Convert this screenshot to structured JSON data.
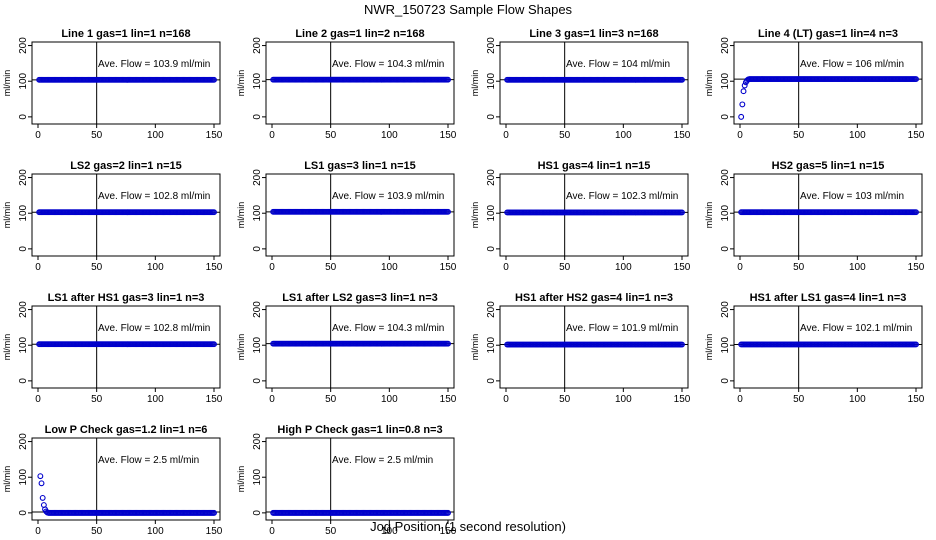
{
  "figure": {
    "title": "NWR_150723  Sample Flow Shapes",
    "xlabel": "Jog Position (1 second resolution)"
  },
  "chart_data": [
    {
      "type": "scatter",
      "title": "Line 1 gas=1 lin=1 n=168",
      "ylabel": "ml/min",
      "xlim": [
        0,
        150
      ],
      "ylim": [
        -20,
        210
      ],
      "xticks": [
        0,
        50,
        100,
        150
      ],
      "yticks": [
        0,
        100,
        200
      ],
      "annotation": "Ave. Flow = 103.9  ml/min",
      "hline": 103.9,
      "vline": 50,
      "flow": {
        "x_start": 1,
        "x_end": 150,
        "level": 103.9,
        "ramp": []
      }
    },
    {
      "type": "scatter",
      "title": "Line 2 gas=1 lin=2 n=168",
      "ylabel": "ml/min",
      "xlim": [
        0,
        150
      ],
      "ylim": [
        -20,
        210
      ],
      "xticks": [
        0,
        50,
        100,
        150
      ],
      "yticks": [
        0,
        100,
        200
      ],
      "annotation": "Ave. Flow = 104.3  ml/min",
      "hline": 104.3,
      "vline": 50,
      "flow": {
        "x_start": 1,
        "x_end": 150,
        "level": 104.3,
        "ramp": []
      }
    },
    {
      "type": "scatter",
      "title": "Line 3 gas=1 lin=3 n=168",
      "ylabel": "ml/min",
      "xlim": [
        0,
        150
      ],
      "ylim": [
        -20,
        210
      ],
      "xticks": [
        0,
        50,
        100,
        150
      ],
      "yticks": [
        0,
        100,
        200
      ],
      "annotation": "Ave. Flow = 104  ml/min",
      "hline": 104,
      "vline": 50,
      "flow": {
        "x_start": 1,
        "x_end": 150,
        "level": 104,
        "ramp": []
      }
    },
    {
      "type": "scatter",
      "title": "Line 4 (LT) gas=1 lin=4 n=3",
      "ylabel": "ml/min",
      "xlim": [
        0,
        150
      ],
      "ylim": [
        -20,
        210
      ],
      "xticks": [
        0,
        50,
        100,
        150
      ],
      "yticks": [
        0,
        100,
        200
      ],
      "annotation": "Ave. Flow = 106  ml/min",
      "hline": 106,
      "vline": 50,
      "flow": {
        "x_start": 8,
        "x_end": 150,
        "level": 106,
        "ramp": [
          [
            1,
            0
          ],
          [
            2,
            35
          ],
          [
            3,
            72
          ],
          [
            4,
            88
          ],
          [
            5,
            97
          ],
          [
            6,
            102
          ],
          [
            7,
            105
          ]
        ]
      }
    },
    {
      "type": "scatter",
      "title": "LS2 gas=2 lin=1 n=15",
      "ylabel": "ml/min",
      "xlim": [
        0,
        150
      ],
      "ylim": [
        -20,
        210
      ],
      "xticks": [
        0,
        50,
        100,
        150
      ],
      "yticks": [
        0,
        100,
        200
      ],
      "annotation": "Ave. Flow = 102.8  ml/min",
      "hline": 102.8,
      "vline": 50,
      "flow": {
        "x_start": 1,
        "x_end": 150,
        "level": 102.8,
        "ramp": []
      }
    },
    {
      "type": "scatter",
      "title": "LS1 gas=3 lin=1 n=15",
      "ylabel": "ml/min",
      "xlim": [
        0,
        150
      ],
      "ylim": [
        -20,
        210
      ],
      "xticks": [
        0,
        50,
        100,
        150
      ],
      "yticks": [
        0,
        100,
        200
      ],
      "annotation": "Ave. Flow = 103.9  ml/min",
      "hline": 103.9,
      "vline": 50,
      "flow": {
        "x_start": 1,
        "x_end": 150,
        "level": 103.9,
        "ramp": []
      }
    },
    {
      "type": "scatter",
      "title": "HS1 gas=4 lin=1 n=15",
      "ylabel": "ml/min",
      "xlim": [
        0,
        150
      ],
      "ylim": [
        -20,
        210
      ],
      "xticks": [
        0,
        50,
        100,
        150
      ],
      "yticks": [
        0,
        100,
        200
      ],
      "annotation": "Ave. Flow = 102.3  ml/min",
      "hline": 102.3,
      "vline": 50,
      "flow": {
        "x_start": 1,
        "x_end": 150,
        "level": 102.3,
        "ramp": []
      }
    },
    {
      "type": "scatter",
      "title": "HS2 gas=5 lin=1 n=15",
      "ylabel": "ml/min",
      "xlim": [
        0,
        150
      ],
      "ylim": [
        -20,
        210
      ],
      "xticks": [
        0,
        50,
        100,
        150
      ],
      "yticks": [
        0,
        100,
        200
      ],
      "annotation": "Ave. Flow = 103  ml/min",
      "hline": 103,
      "vline": 50,
      "flow": {
        "x_start": 1,
        "x_end": 150,
        "level": 103,
        "ramp": []
      }
    },
    {
      "type": "scatter",
      "title": "LS1 after HS1 gas=3 lin=1 n=3",
      "ylabel": "ml/min",
      "xlim": [
        0,
        150
      ],
      "ylim": [
        -20,
        210
      ],
      "xticks": [
        0,
        50,
        100,
        150
      ],
      "yticks": [
        0,
        100,
        200
      ],
      "annotation": "Ave. Flow = 102.8  ml/min",
      "hline": 102.8,
      "vline": 50,
      "flow": {
        "x_start": 1,
        "x_end": 150,
        "level": 102.8,
        "ramp": []
      }
    },
    {
      "type": "scatter",
      "title": "LS1 after LS2 gas=3 lin=1 n=3",
      "ylabel": "ml/min",
      "xlim": [
        0,
        150
      ],
      "ylim": [
        -20,
        210
      ],
      "xticks": [
        0,
        50,
        100,
        150
      ],
      "yticks": [
        0,
        100,
        200
      ],
      "annotation": "Ave. Flow = 104.3  ml/min",
      "hline": 104.3,
      "vline": 50,
      "flow": {
        "x_start": 1,
        "x_end": 150,
        "level": 104.3,
        "ramp": []
      }
    },
    {
      "type": "scatter",
      "title": "HS1 after HS2 gas=4 lin=1 n=3",
      "ylabel": "ml/min",
      "xlim": [
        0,
        150
      ],
      "ylim": [
        -20,
        210
      ],
      "xticks": [
        0,
        50,
        100,
        150
      ],
      "yticks": [
        0,
        100,
        200
      ],
      "annotation": "Ave. Flow = 101.9  ml/min",
      "hline": 101.9,
      "vline": 50,
      "flow": {
        "x_start": 1,
        "x_end": 150,
        "level": 101.9,
        "ramp": []
      }
    },
    {
      "type": "scatter",
      "title": "HS1 after LS1 gas=4 lin=1 n=3",
      "ylabel": "ml/min",
      "xlim": [
        0,
        150
      ],
      "ylim": [
        -20,
        210
      ],
      "xticks": [
        0,
        50,
        100,
        150
      ],
      "yticks": [
        0,
        100,
        200
      ],
      "annotation": "Ave. Flow = 102.1  ml/min",
      "hline": 102.1,
      "vline": 50,
      "flow": {
        "x_start": 1,
        "x_end": 150,
        "level": 102.1,
        "ramp": []
      }
    },
    {
      "type": "scatter",
      "title": "Low P Check gas=1.2 lin=1 n=6",
      "ylabel": "ml/min",
      "xlim": [
        0,
        150
      ],
      "ylim": [
        -20,
        210
      ],
      "xticks": [
        0,
        50,
        100,
        150
      ],
      "yticks": [
        0,
        100,
        200
      ],
      "annotation": "Ave. Flow =  2.5  ml/min",
      "hline": 2.5,
      "vline": 50,
      "flow": {
        "x_start": 9,
        "x_end": 150,
        "level": 0,
        "ramp": [
          [
            2,
            103
          ],
          [
            3,
            83
          ],
          [
            4,
            42
          ],
          [
            5,
            22
          ],
          [
            6,
            10
          ],
          [
            7,
            4
          ],
          [
            8,
            1
          ]
        ]
      }
    },
    {
      "type": "scatter",
      "title": "High P Check gas=1 lin=0.8 n=3",
      "ylabel": "ml/min",
      "xlim": [
        0,
        150
      ],
      "ylim": [
        -20,
        210
      ],
      "xticks": [
        0,
        50,
        100,
        150
      ],
      "yticks": [
        0,
        100,
        200
      ],
      "annotation": "Ave. Flow =  2.5  ml/min",
      "hline": 2.5,
      "vline": 50,
      "flow": {
        "x_start": 1,
        "x_end": 150,
        "level": 0,
        "ramp": []
      }
    }
  ],
  "colors": {
    "points": "#0000cc",
    "axes": "#000000"
  }
}
